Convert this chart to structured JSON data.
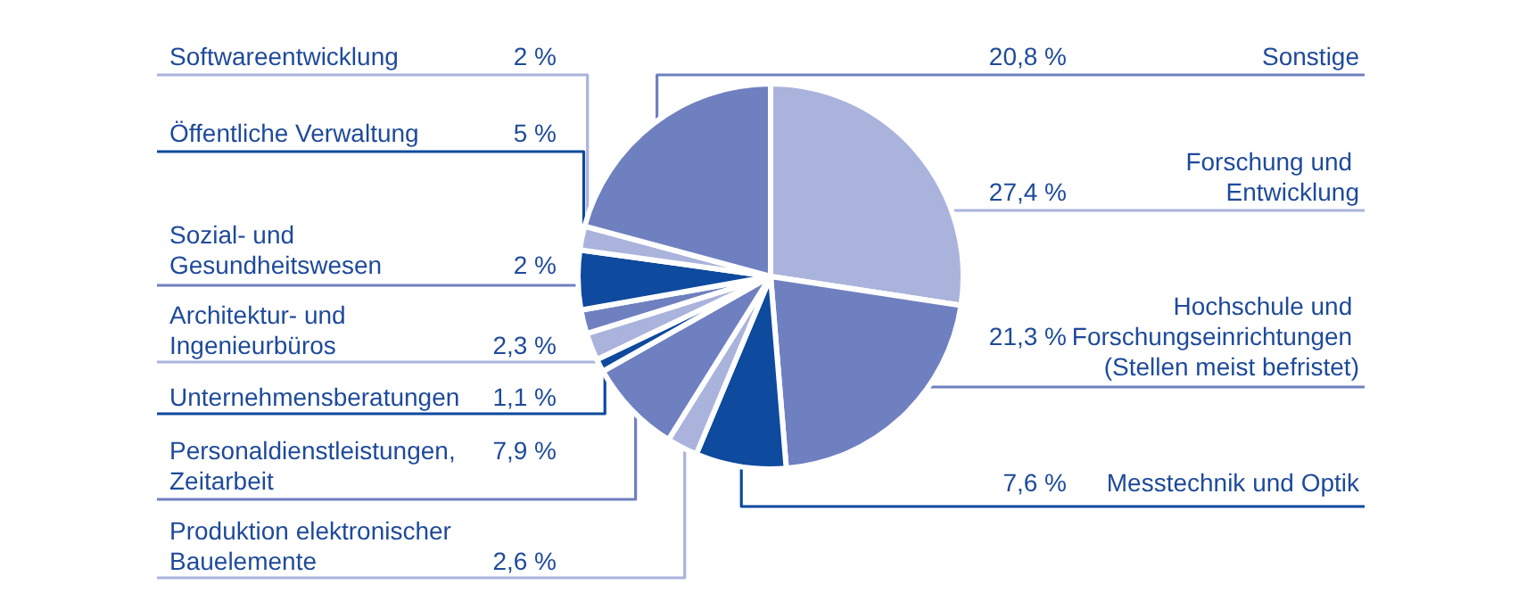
{
  "chart_data": {
    "type": "pie",
    "categories": [
      "Forschung und Entwicklung",
      "Hochschule und Forschungseinrichtungen (Stellen meist befristet)",
      "Messtechnik und Optik",
      "Produktion elektronischer Bauelemente",
      "Personaldienstleistungen, Zeitarbeit",
      "Unternehmensberatungen",
      "Architektur- und Ingenieurbüros",
      "Sozial- und Gesundheitswesen",
      "Öffentliche Verwaltung",
      "Softwareentwicklung",
      "Sonstige"
    ],
    "values": [
      27.4,
      21.3,
      7.6,
      2.6,
      7.9,
      1.1,
      2.3,
      2,
      5,
      2,
      20.8
    ],
    "value_labels": [
      "27,4 %",
      "21,3 %",
      "7,6 %",
      "2,6 %",
      "7,9 %",
      "1,1 %",
      "2,3 %",
      "2 %",
      "5 %",
      "2 %",
      "20,8 %"
    ],
    "colors": [
      "#aab3dc",
      "#6f80c0",
      "#0e4a9e",
      "#aab3dc",
      "#6f80c0",
      "#0e4a9e",
      "#aab3dc",
      "#6f80c0",
      "#0e4a9e",
      "#aab3dc",
      "#6f80c0"
    ]
  }
}
